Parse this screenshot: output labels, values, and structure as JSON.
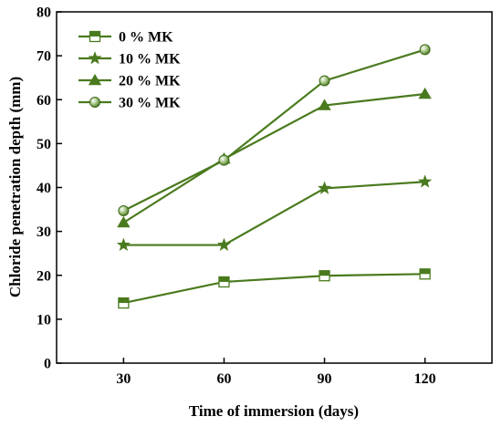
{
  "chart_data": {
    "type": "line",
    "xlabel": "Time of immersion (days)",
    "ylabel": "Chloride penetration depth (mm)",
    "x": [
      30,
      60,
      90,
      120
    ],
    "xlim": [
      10,
      140
    ],
    "ylim": [
      0,
      80
    ],
    "yticks": [
      0,
      10,
      20,
      30,
      40,
      50,
      60,
      70,
      80
    ],
    "grid": false,
    "legend_position": "top-left",
    "line_color": "#4a7a1e",
    "series": [
      {
        "name": "0 % MK",
        "marker": "square-half-open",
        "values": [
          13.7,
          18.5,
          19.9,
          20.3
        ]
      },
      {
        "name": "10 % MK",
        "marker": "star",
        "values": [
          26.9,
          26.9,
          39.8,
          41.3
        ]
      },
      {
        "name": "20 % MK",
        "marker": "triangle",
        "values": [
          32.0,
          46.5,
          58.7,
          61.3
        ]
      },
      {
        "name": "30 % MK",
        "marker": "circle-shaded",
        "values": [
          34.7,
          46.2,
          64.3,
          71.4
        ]
      }
    ]
  }
}
